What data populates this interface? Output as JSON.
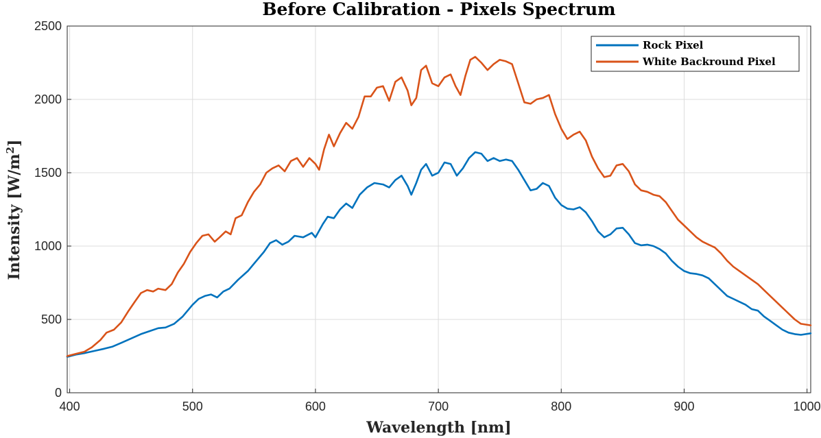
{
  "chart_data": {
    "type": "line",
    "title": "Before Calibration - Pixels Spectrum",
    "xlabel": "Wavelength [nm]",
    "ylabel": "Intensity [W/m²]",
    "ylabel_unit_base": "Intensity [W/m",
    "ylabel_unit_sup": "2",
    "ylabel_unit_close": "]",
    "xlim": [
      398,
      1003
    ],
    "ylim": [
      0,
      2500
    ],
    "xticks": [
      400,
      500,
      600,
      700,
      800,
      900,
      1000
    ],
    "yticks": [
      0,
      500,
      1000,
      1500,
      2000,
      2500
    ],
    "grid": true,
    "legend_position": "top-right",
    "series": [
      {
        "name": "Rock Pixel",
        "color": "#0072BD",
        "points": [
          [
            398,
            245
          ],
          [
            405,
            260
          ],
          [
            412,
            270
          ],
          [
            420,
            285
          ],
          [
            428,
            300
          ],
          [
            435,
            315
          ],
          [
            442,
            340
          ],
          [
            450,
            370
          ],
          [
            458,
            400
          ],
          [
            465,
            420
          ],
          [
            472,
            440
          ],
          [
            478,
            445
          ],
          [
            485,
            470
          ],
          [
            492,
            520
          ],
          [
            500,
            600
          ],
          [
            505,
            640
          ],
          [
            510,
            660
          ],
          [
            515,
            670
          ],
          [
            520,
            650
          ],
          [
            525,
            690
          ],
          [
            530,
            710
          ],
          [
            537,
            770
          ],
          [
            545,
            830
          ],
          [
            552,
            900
          ],
          [
            558,
            960
          ],
          [
            563,
            1020
          ],
          [
            568,
            1040
          ],
          [
            573,
            1010
          ],
          [
            578,
            1030
          ],
          [
            583,
            1070
          ],
          [
            590,
            1060
          ],
          [
            597,
            1090
          ],
          [
            600,
            1060
          ],
          [
            606,
            1150
          ],
          [
            610,
            1200
          ],
          [
            615,
            1190
          ],
          [
            620,
            1250
          ],
          [
            625,
            1290
          ],
          [
            630,
            1260
          ],
          [
            636,
            1350
          ],
          [
            642,
            1400
          ],
          [
            648,
            1430
          ],
          [
            655,
            1420
          ],
          [
            660,
            1400
          ],
          [
            665,
            1450
          ],
          [
            670,
            1480
          ],
          [
            675,
            1410
          ],
          [
            678,
            1350
          ],
          [
            682,
            1430
          ],
          [
            686,
            1520
          ],
          [
            690,
            1560
          ],
          [
            695,
            1480
          ],
          [
            700,
            1500
          ],
          [
            705,
            1570
          ],
          [
            710,
            1560
          ],
          [
            715,
            1480
          ],
          [
            720,
            1530
          ],
          [
            725,
            1600
          ],
          [
            730,
            1640
          ],
          [
            735,
            1630
          ],
          [
            740,
            1580
          ],
          [
            745,
            1600
          ],
          [
            750,
            1580
          ],
          [
            755,
            1590
          ],
          [
            760,
            1580
          ],
          [
            765,
            1520
          ],
          [
            770,
            1450
          ],
          [
            775,
            1380
          ],
          [
            780,
            1390
          ],
          [
            785,
            1430
          ],
          [
            790,
            1410
          ],
          [
            795,
            1330
          ],
          [
            800,
            1280
          ],
          [
            805,
            1255
          ],
          [
            810,
            1250
          ],
          [
            815,
            1265
          ],
          [
            820,
            1230
          ],
          [
            825,
            1170
          ],
          [
            830,
            1100
          ],
          [
            835,
            1060
          ],
          [
            840,
            1080
          ],
          [
            845,
            1120
          ],
          [
            850,
            1125
          ],
          [
            855,
            1080
          ],
          [
            860,
            1020
          ],
          [
            865,
            1005
          ],
          [
            870,
            1010
          ],
          [
            875,
            1000
          ],
          [
            880,
            980
          ],
          [
            885,
            950
          ],
          [
            890,
            900
          ],
          [
            895,
            860
          ],
          [
            900,
            830
          ],
          [
            905,
            815
          ],
          [
            910,
            810
          ],
          [
            915,
            800
          ],
          [
            920,
            780
          ],
          [
            925,
            740
          ],
          [
            930,
            700
          ],
          [
            935,
            660
          ],
          [
            940,
            640
          ],
          [
            945,
            620
          ],
          [
            950,
            600
          ],
          [
            955,
            570
          ],
          [
            960,
            560
          ],
          [
            965,
            520
          ],
          [
            970,
            490
          ],
          [
            975,
            460
          ],
          [
            980,
            430
          ],
          [
            985,
            410
          ],
          [
            990,
            400
          ],
          [
            995,
            395
          ],
          [
            1003,
            405
          ]
        ]
      },
      {
        "name": "White Backround Pixel",
        "color": "#D95319",
        "points": [
          [
            398,
            250
          ],
          [
            405,
            265
          ],
          [
            412,
            280
          ],
          [
            418,
            310
          ],
          [
            425,
            360
          ],
          [
            430,
            410
          ],
          [
            436,
            430
          ],
          [
            442,
            480
          ],
          [
            448,
            560
          ],
          [
            453,
            620
          ],
          [
            458,
            680
          ],
          [
            463,
            700
          ],
          [
            468,
            690
          ],
          [
            472,
            710
          ],
          [
            478,
            700
          ],
          [
            483,
            740
          ],
          [
            488,
            820
          ],
          [
            493,
            880
          ],
          [
            498,
            960
          ],
          [
            503,
            1020
          ],
          [
            508,
            1070
          ],
          [
            513,
            1080
          ],
          [
            518,
            1030
          ],
          [
            522,
            1060
          ],
          [
            527,
            1100
          ],
          [
            531,
            1080
          ],
          [
            535,
            1190
          ],
          [
            540,
            1210
          ],
          [
            545,
            1300
          ],
          [
            550,
            1370
          ],
          [
            555,
            1420
          ],
          [
            560,
            1500
          ],
          [
            565,
            1530
          ],
          [
            570,
            1550
          ],
          [
            575,
            1510
          ],
          [
            580,
            1580
          ],
          [
            585,
            1600
          ],
          [
            590,
            1540
          ],
          [
            595,
            1600
          ],
          [
            600,
            1560
          ],
          [
            603,
            1520
          ],
          [
            607,
            1660
          ],
          [
            611,
            1760
          ],
          [
            615,
            1680
          ],
          [
            620,
            1770
          ],
          [
            625,
            1840
          ],
          [
            630,
            1800
          ],
          [
            635,
            1880
          ],
          [
            640,
            2020
          ],
          [
            645,
            2020
          ],
          [
            650,
            2080
          ],
          [
            655,
            2090
          ],
          [
            660,
            1990
          ],
          [
            665,
            2120
          ],
          [
            670,
            2150
          ],
          [
            675,
            2060
          ],
          [
            678,
            1960
          ],
          [
            682,
            2010
          ],
          [
            686,
            2200
          ],
          [
            690,
            2230
          ],
          [
            695,
            2110
          ],
          [
            700,
            2090
          ],
          [
            705,
            2150
          ],
          [
            710,
            2170
          ],
          [
            714,
            2090
          ],
          [
            718,
            2030
          ],
          [
            722,
            2160
          ],
          [
            726,
            2270
          ],
          [
            730,
            2290
          ],
          [
            735,
            2250
          ],
          [
            740,
            2200
          ],
          [
            745,
            2240
          ],
          [
            750,
            2270
          ],
          [
            755,
            2260
          ],
          [
            760,
            2240
          ],
          [
            765,
            2110
          ],
          [
            770,
            1980
          ],
          [
            775,
            1970
          ],
          [
            780,
            2000
          ],
          [
            785,
            2010
          ],
          [
            790,
            2030
          ],
          [
            795,
            1900
          ],
          [
            800,
            1800
          ],
          [
            805,
            1730
          ],
          [
            810,
            1760
          ],
          [
            815,
            1780
          ],
          [
            820,
            1720
          ],
          [
            825,
            1610
          ],
          [
            830,
            1530
          ],
          [
            835,
            1470
          ],
          [
            840,
            1480
          ],
          [
            845,
            1550
          ],
          [
            850,
            1560
          ],
          [
            855,
            1510
          ],
          [
            860,
            1420
          ],
          [
            865,
            1380
          ],
          [
            870,
            1370
          ],
          [
            875,
            1350
          ],
          [
            880,
            1340
          ],
          [
            885,
            1300
          ],
          [
            890,
            1240
          ],
          [
            895,
            1180
          ],
          [
            900,
            1140
          ],
          [
            905,
            1100
          ],
          [
            910,
            1060
          ],
          [
            915,
            1030
          ],
          [
            920,
            1010
          ],
          [
            925,
            990
          ],
          [
            930,
            950
          ],
          [
            935,
            900
          ],
          [
            940,
            860
          ],
          [
            945,
            830
          ],
          [
            950,
            800
          ],
          [
            955,
            770
          ],
          [
            960,
            740
          ],
          [
            965,
            700
          ],
          [
            970,
            660
          ],
          [
            975,
            620
          ],
          [
            980,
            580
          ],
          [
            985,
            540
          ],
          [
            990,
            500
          ],
          [
            995,
            470
          ],
          [
            1003,
            460
          ]
        ]
      }
    ]
  }
}
